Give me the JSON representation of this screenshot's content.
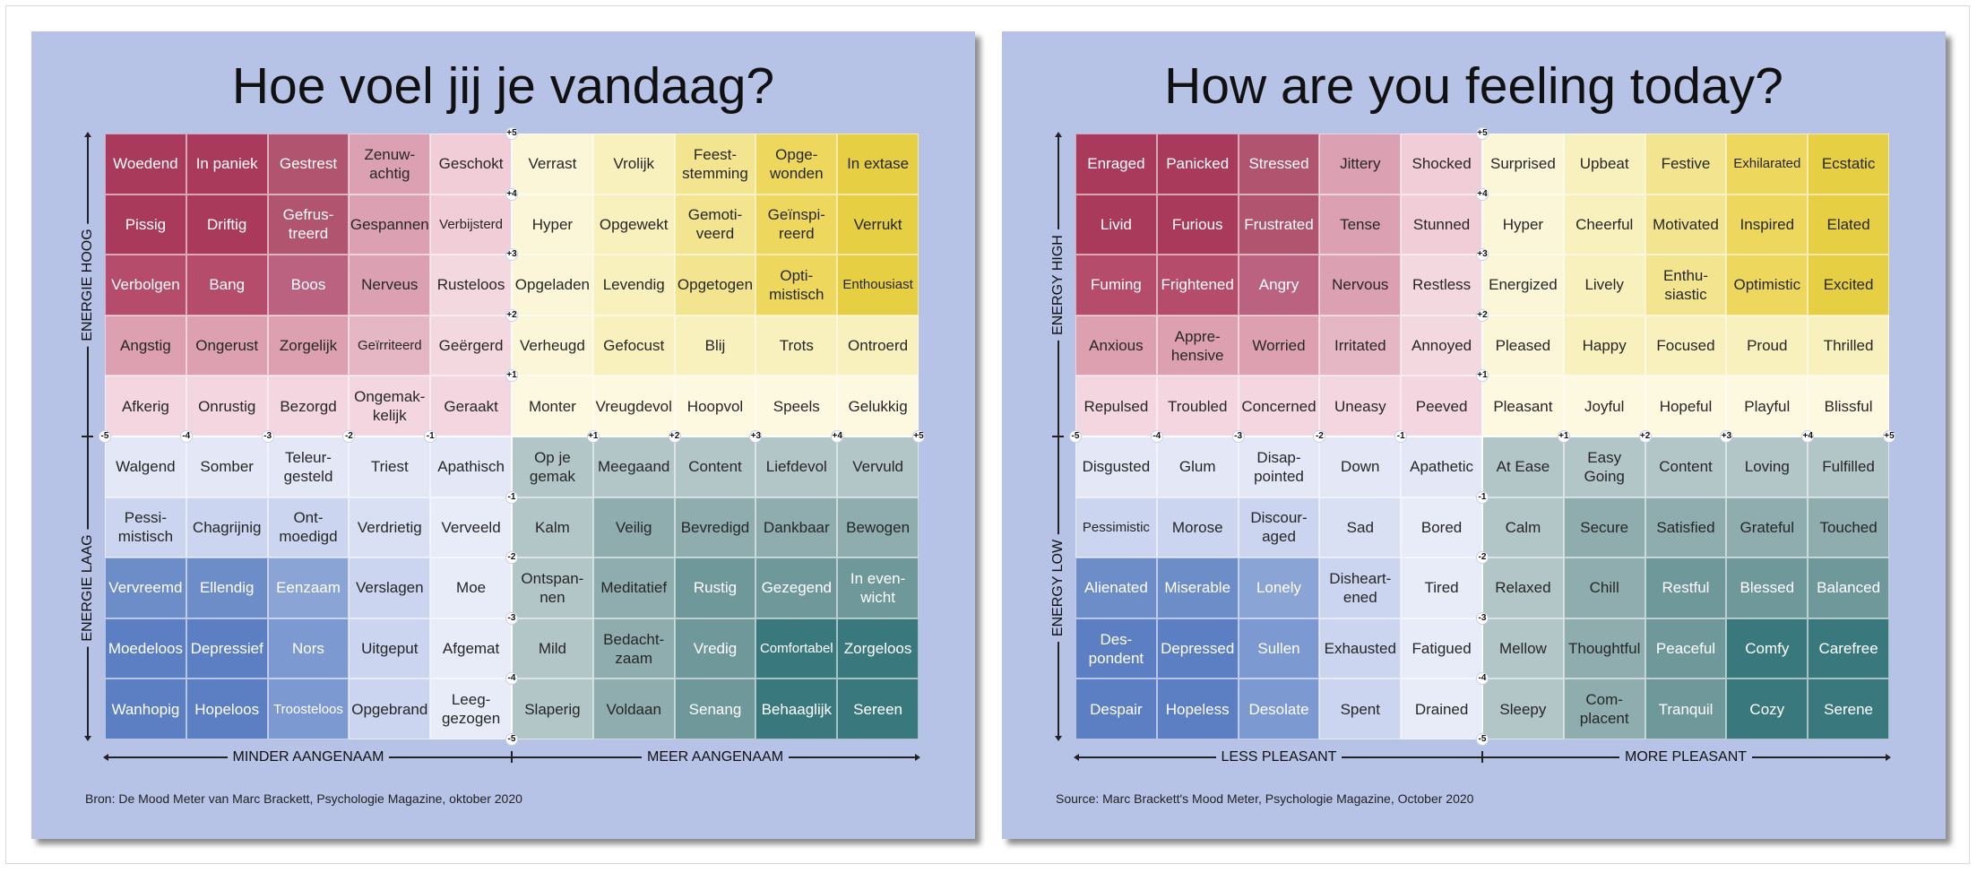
{
  "colors": {
    "panel_bg": "#b6c3e6",
    "grid": [
      [
        "#a93a5b",
        "#a93a5b",
        "#b0546f",
        "#dba1b3",
        "#f1cdd8",
        "#fbf6d8",
        "#f8f0bd",
        "#f3e48f",
        "#edd85d",
        "#e6cf43"
      ],
      [
        "#a93a5b",
        "#a93a5b",
        "#b0546f",
        "#dba1b3",
        "#f1cdd8",
        "#fbf6d8",
        "#f8f0bd",
        "#f3e48f",
        "#edd85d",
        "#e6cf43"
      ],
      [
        "#b54c6c",
        "#b54c6c",
        "#bb6280",
        "#dba1b3",
        "#f3d8e0",
        "#fbf6d8",
        "#f8f0bd",
        "#f3e48f",
        "#edd85d",
        "#e6cf43"
      ],
      [
        "#dca0b1",
        "#dca0b1",
        "#dca0b1",
        "#e5b6c4",
        "#f3d8e0",
        "#fbf6d8",
        "#f8f0bd",
        "#f8f0bd",
        "#f8f0bd",
        "#f8f0bd"
      ],
      [
        "#f3d6df",
        "#f3d6df",
        "#f3d6df",
        "#f3d6df",
        "#f3d6df",
        "#fdf9e1",
        "#fdf9e1",
        "#fdf9e1",
        "#fdf9e1",
        "#fdf9e1"
      ],
      [
        "#e3e7f6",
        "#e3e7f6",
        "#e3e7f6",
        "#e3e7f6",
        "#e3e7f6",
        "#b2c5c7",
        "#b2c5c7",
        "#b2c5c7",
        "#b2c5c7",
        "#b2c5c7"
      ],
      [
        "#cbd5ef",
        "#cbd5ef",
        "#cbd5ef",
        "#d9e0f3",
        "#e8ecf8",
        "#b2c5c7",
        "#8fadaf",
        "#8fadaf",
        "#8fadaf",
        "#8fadaf"
      ],
      [
        "#6d8dc9",
        "#6d8dc9",
        "#8aa4d6",
        "#cbd5ef",
        "#e8ecf8",
        "#b2c5c7",
        "#8fadaf",
        "#6e9899",
        "#6e9899",
        "#6e9899"
      ],
      [
        "#5b7fc2",
        "#5b7fc2",
        "#7c99d2",
        "#cbd5ef",
        "#e8ecf8",
        "#b2c5c7",
        "#8fadaf",
        "#6e9899",
        "#39797e",
        "#39797e"
      ],
      [
        "#5b7fc2",
        "#5b7fc2",
        "#7c99d2",
        "#cbd5ef",
        "#e8ecf8",
        "#b2c5c7",
        "#8fadaf",
        "#6e9899",
        "#39797e",
        "#39797e"
      ]
    ],
    "light_text_dark_cells": [
      "#a93a5b",
      "#b0546f",
      "#b54c6c",
      "#bb6280",
      "#6d8dc9",
      "#5b7fc2",
      "#7c99d2",
      "#8aa4d6",
      "#39797e",
      "#6e9899"
    ]
  },
  "scale": {
    "x_ticks": [
      "-5",
      "-4",
      "-3",
      "-2",
      "-1",
      "+1",
      "+2",
      "+3",
      "+4",
      "+5"
    ],
    "y_ticks_top": [
      "+5",
      "+4",
      "+3",
      "+2",
      "+1"
    ],
    "y_ticks_bottom": [
      "-1",
      "-2",
      "-3",
      "-4",
      "-5"
    ]
  },
  "panels": [
    {
      "id": "nl",
      "title": "Hoe voel jij je vandaag?",
      "axis_energy_high": "ENERGIE HOOG",
      "axis_energy_low": "ENERGIE LAAG",
      "axis_less_pleasant": "MINDER AANGENAAM",
      "axis_more_pleasant": "MEER AANGENAAM",
      "source": "Bron: De Mood Meter van Marc Brackett, Psychologie Magazine, oktober 2020",
      "rows": [
        [
          "Woedend",
          "In paniek",
          "Gestrest",
          "Zenuw-\nachtig",
          "Geschokt",
          "Verrast",
          "Vrolijk",
          "Feest-\nstemming",
          "Opge-\nwonden",
          "In extase"
        ],
        [
          "Pissig",
          "Driftig",
          "Gefrus-\ntreerd",
          "Gespannen",
          "Verbijsterd",
          "Hyper",
          "Opgewekt",
          "Gemoti-\nveerd",
          "Geïnspi-\nreerd",
          "Verrukt"
        ],
        [
          "Verbolgen",
          "Bang",
          "Boos",
          "Nerveus",
          "Rusteloos",
          "Opgeladen",
          "Levendig",
          "Opgetogen",
          "Opti-\nmistisch",
          "Enthousiast"
        ],
        [
          "Angstig",
          "Ongerust",
          "Zorgelijk",
          "Geïrriteerd",
          "Geërgerd",
          "Verheugd",
          "Gefocust",
          "Blij",
          "Trots",
          "Ontroerd"
        ],
        [
          "Afkerig",
          "Onrustig",
          "Bezorgd",
          "Ongemak-\nkelijk",
          "Geraakt",
          "Monter",
          "Vreugdevol",
          "Hoopvol",
          "Speels",
          "Gelukkig"
        ],
        [
          "Walgend",
          "Somber",
          "Teleur-\ngesteld",
          "Triest",
          "Apathisch",
          "Op je\ngemak",
          "Meegaand",
          "Content",
          "Liefdevol",
          "Vervuld"
        ],
        [
          "Pessi-\nmistisch",
          "Chagrijnig",
          "Ont-\nmoedigd",
          "Verdrietig",
          "Verveeld",
          "Kalm",
          "Veilig",
          "Bevredigd",
          "Dankbaar",
          "Bewogen"
        ],
        [
          "Vervreemd",
          "Ellendig",
          "Eenzaam",
          "Verslagen",
          "Moe",
          "Ontspan-\nnen",
          "Meditatief",
          "Rustig",
          "Gezegend",
          "In even-\nwicht"
        ],
        [
          "Moedeloos",
          "Depressief",
          "Nors",
          "Uitgeput",
          "Afgemat",
          "Mild",
          "Bedacht-\nzaam",
          "Vredig",
          "Comfortabel",
          "Zorgeloos"
        ],
        [
          "Wanhopig",
          "Hopeloos",
          "Troosteloos",
          "Opgebrand",
          "Leeg-\ngezogen",
          "Slaperig",
          "Voldaan",
          "Senang",
          "Behaaglijk",
          "Sereen"
        ]
      ]
    },
    {
      "id": "en",
      "title": "How are you feeling today?",
      "axis_energy_high": "ENERGY HIGH",
      "axis_energy_low": "ENERGY LOW",
      "axis_less_pleasant": "LESS PLEASANT",
      "axis_more_pleasant": "MORE PLEASANT",
      "source": "Source: Marc Brackett's Mood Meter, Psychologie Magazine, October 2020",
      "rows": [
        [
          "Enraged",
          "Panicked",
          "Stressed",
          "Jittery",
          "Shocked",
          "Surprised",
          "Upbeat",
          "Festive",
          "Exhilarated",
          "Ecstatic"
        ],
        [
          "Livid",
          "Furious",
          "Frustrated",
          "Tense",
          "Stunned",
          "Hyper",
          "Cheerful",
          "Motivated",
          "Inspired",
          "Elated"
        ],
        [
          "Fuming",
          "Frightened",
          "Angry",
          "Nervous",
          "Restless",
          "Energized",
          "Lively",
          "Enthu-\nsiastic",
          "Optimistic",
          "Excited"
        ],
        [
          "Anxious",
          "Appre-\nhensive",
          "Worried",
          "Irritated",
          "Annoyed",
          "Pleased",
          "Happy",
          "Focused",
          "Proud",
          "Thrilled"
        ],
        [
          "Repulsed",
          "Troubled",
          "Concerned",
          "Uneasy",
          "Peeved",
          "Pleasant",
          "Joyful",
          "Hopeful",
          "Playful",
          "Blissful"
        ],
        [
          "Disgusted",
          "Glum",
          "Disap-\npointed",
          "Down",
          "Apathetic",
          "At Ease",
          "Easy\nGoing",
          "Content",
          "Loving",
          "Fulfilled"
        ],
        [
          "Pessimistic",
          "Morose",
          "Discour-\naged",
          "Sad",
          "Bored",
          "Calm",
          "Secure",
          "Satisfied",
          "Grateful",
          "Touched"
        ],
        [
          "Alienated",
          "Miserable",
          "Lonely",
          "Disheart-\nened",
          "Tired",
          "Relaxed",
          "Chill",
          "Restful",
          "Blessed",
          "Balanced"
        ],
        [
          "Des-\npondent",
          "Depressed",
          "Sullen",
          "Exhausted",
          "Fatigued",
          "Mellow",
          "Thoughtful",
          "Peaceful",
          "Comfy",
          "Carefree"
        ],
        [
          "Despair",
          "Hopeless",
          "Desolate",
          "Spent",
          "Drained",
          "Sleepy",
          "Com-\nplacent",
          "Tranquil",
          "Cozy",
          "Serene"
        ]
      ]
    }
  ]
}
